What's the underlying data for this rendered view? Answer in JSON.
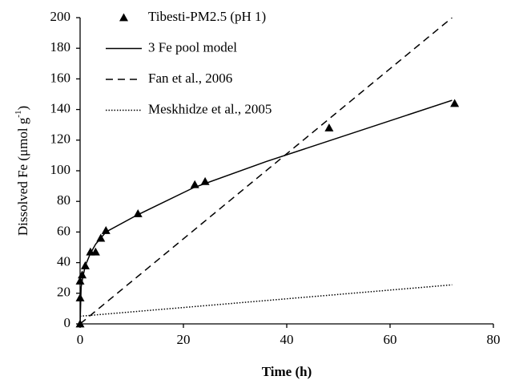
{
  "chart_data": {
    "type": "scatter",
    "xlabel": "Time (h)",
    "ylabel": [
      "Dissolved Fe (μmol g",
      "-1",
      ")"
    ],
    "xlim": [
      0,
      80
    ],
    "ylim": [
      0,
      200
    ],
    "xticks": [
      0,
      20,
      40,
      60,
      80
    ],
    "yticks": [
      0,
      20,
      40,
      60,
      80,
      100,
      120,
      140,
      160,
      180,
      200
    ],
    "grid": false,
    "legend": "upper left",
    "series": [
      {
        "name": "Tibesti-PM2.5 (pH 1)",
        "type": "scatter",
        "color": "#000000",
        "x": [
          0,
          0,
          0,
          0.4,
          1,
          2,
          3,
          4,
          5,
          11.2,
          22.2,
          24.2,
          48.2,
          72.5
        ],
        "values": [
          0,
          17,
          28,
          32,
          38,
          47,
          47,
          56,
          61,
          72,
          91,
          93,
          128,
          144
        ]
      },
      {
        "name": "3 Fe pool model",
        "type": "line",
        "dash": "solid",
        "color": "#000000",
        "x": [
          0,
          0.2,
          0.5,
          1,
          2,
          3,
          5,
          11,
          22,
          36,
          72
        ],
        "values": [
          0,
          24,
          30,
          38,
          46,
          52,
          60,
          71,
          89,
          106,
          146
        ]
      },
      {
        "name": "Fan et al., 2006",
        "type": "line",
        "dash": "dashed",
        "color": "#000000",
        "x": [
          0,
          72
        ],
        "values": [
          0,
          200
        ]
      },
      {
        "name": "Meskhidze et al., 2005",
        "type": "line",
        "dash": "dotted",
        "color": "#000000",
        "x": [
          0,
          72
        ],
        "values": [
          5,
          25.5
        ]
      }
    ]
  }
}
